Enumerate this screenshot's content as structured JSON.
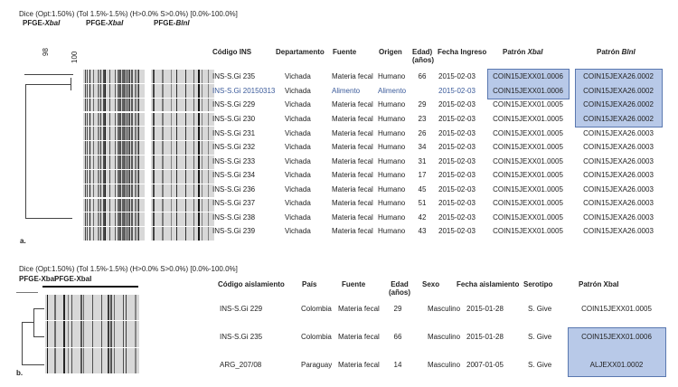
{
  "panel_a": {
    "dice": "Dice (Opt:1.50%) (Tol  1.5%-1.5%) (H>0.0% S>0.0%) [0.0%-100.0%]",
    "gel_labels": [
      {
        "pre": "PFGE-",
        "it": "XbaI"
      },
      {
        "pre": "PFGE-",
        "it": "XbaI"
      },
      {
        "pre": "PFGE-",
        "it": "BlnI"
      }
    ],
    "scale": [
      "98",
      "100"
    ],
    "headers": {
      "code": "Código INS",
      "dept": "Departamento",
      "fuente": "Fuente",
      "origen": "Origen",
      "edad": "Edad)",
      "edad2": "(años)",
      "fecha": "Fecha Ingreso",
      "xbal_pre": "Patrón ",
      "xbal_it": "XbaI",
      "blni_pre": "Patrón ",
      "blni_it": "BlnI"
    },
    "label": "a.",
    "rows": [
      {
        "code": "INS-S.Gi 235",
        "dept": "Vichada",
        "fuente": "Materia fecal",
        "origen": "Humano",
        "edad": "66",
        "fecha": "2015-02-03",
        "xbal": "COIN15JEXX01.0006",
        "blni": "COIN15JEXA26.0002",
        "highlight": false
      },
      {
        "code": "INS-S.Gi 20150313",
        "dept": "Vichada",
        "fuente": "Alimento",
        "origen": "Alimento",
        "edad": "",
        "fecha": "2015-02-03",
        "xbal": "COIN15JEXX01.0006",
        "blni": "COIN15JEXA26.0002",
        "highlight": true
      },
      {
        "code": "INS-S.Gi 229",
        "dept": "Vichada",
        "fuente": "Materia fecal",
        "origen": "Humano",
        "edad": "29",
        "fecha": "2015-02-03",
        "xbal": "COIN15JEXX01.0005",
        "blni": "COIN15JEXA26.0002",
        "highlight": false
      },
      {
        "code": "INS-S.Gi 230",
        "dept": "Vichada",
        "fuente": "Materia fecal",
        "origen": "Humano",
        "edad": "23",
        "fecha": "2015-02-03",
        "xbal": "COIN15JEXX01.0005",
        "blni": "COIN15JEXA26.0002",
        "highlight": false
      },
      {
        "code": "INS-S.Gi 231",
        "dept": "Vichada",
        "fuente": "Materia fecal",
        "origen": "Humano",
        "edad": "26",
        "fecha": "2015-02-03",
        "xbal": "COIN15JEXX01.0005",
        "blni": "COIN15JEXA26.0003",
        "highlight": false
      },
      {
        "code": "INS-S.Gi 232",
        "dept": "Vichada",
        "fuente": "Materia fecal",
        "origen": "Humano",
        "edad": "34",
        "fecha": "2015-02-03",
        "xbal": "COIN15JEXX01.0005",
        "blni": "COIN15JEXA26.0003",
        "highlight": false
      },
      {
        "code": "INS-S.Gi 233",
        "dept": "Vichada",
        "fuente": "Materia fecal",
        "origen": "Humano",
        "edad": "31",
        "fecha": "2015-02-03",
        "xbal": "COIN15JEXX01.0005",
        "blni": "COIN15JEXA26.0003",
        "highlight": false
      },
      {
        "code": "INS-S.Gi 234",
        "dept": "Vichada",
        "fuente": "Materia fecal",
        "origen": "Humano",
        "edad": "17",
        "fecha": "2015-02-03",
        "xbal": "COIN15JEXX01.0005",
        "blni": "COIN15JEXA26.0003",
        "highlight": false
      },
      {
        "code": "INS-S.Gi 236",
        "dept": "Vichada",
        "fuente": "Materia fecal",
        "origen": "Humano",
        "edad": "45",
        "fecha": "2015-02-03",
        "xbal": "COIN15JEXX01.0005",
        "blni": "COIN15JEXA26.0003",
        "highlight": false
      },
      {
        "code": "INS-S.Gi 237",
        "dept": "Vichada",
        "fuente": "Materia fecal",
        "origen": "Humano",
        "edad": "51",
        "fecha": "2015-02-03",
        "xbal": "COIN15JEXX01.0005",
        "blni": "COIN15JEXA26.0003",
        "highlight": false
      },
      {
        "code": "INS-S.Gi 238",
        "dept": "Vichada",
        "fuente": "Materia fecal",
        "origen": "Humano",
        "edad": "42",
        "fecha": "2015-02-03",
        "xbal": "COIN15JEXX01.0005",
        "blni": "COIN15JEXA26.0003",
        "highlight": false
      },
      {
        "code": "INS-S.Gi 239",
        "dept": "Vichada",
        "fuente": "Materia fecal",
        "origen": "Humano",
        "edad": "43",
        "fecha": "2015-02-03",
        "xbal": "COIN15JEXX01.0005",
        "blni": "COIN15JEXA26.0003",
        "highlight": false
      }
    ]
  },
  "panel_b": {
    "dice": "Dice (Opt:1.50%) (Tol  1.5%-1.5%) (H>0.0% S>0.0%) [0.0%-100.0%]",
    "gel_labels": [
      "PFGE-XbaI",
      "PFGE-XbaI"
    ],
    "headers": {
      "code": "Código aislamiento",
      "pais": "País",
      "fuente": "Fuente",
      "edad": "Edad",
      "edad2": "(años)",
      "sexo": "Sexo",
      "fecha": "Fecha aislamiento",
      "serotipo": "Serotipo",
      "xbal": "Patrón XbaI"
    },
    "label": "b.",
    "rows": [
      {
        "code": "INS-S.Gi 229",
        "pais": "Colombia",
        "fuente": "Materia fecal",
        "edad": "29",
        "sexo": "Masculino",
        "fecha": "2015-01-28",
        "serotipo": "S. Give",
        "xbal": "COIN15JEXX01.0005"
      },
      {
        "code": "INS-S.Gi 235",
        "pais": "Colombia",
        "fuente": "Materia fecal",
        "edad": "66",
        "sexo": "Masculino",
        "fecha": "2015-01-28",
        "serotipo": "S. Give",
        "xbal": "COIN15JEXX01.0006"
      },
      {
        "code": "ARG_207/08",
        "pais": "Paraguay",
        "fuente": "Materia fecal",
        "edad": "14",
        "sexo": "Masculino",
        "fecha": "2007-01-05",
        "serotipo": "S. Give",
        "xbal": "ALJEXX01.0002"
      }
    ]
  },
  "colors": {
    "highlight_fill": "#b8c9e8",
    "highlight_border": "#5a78b0",
    "highlight_text": "#3a5a9a"
  }
}
